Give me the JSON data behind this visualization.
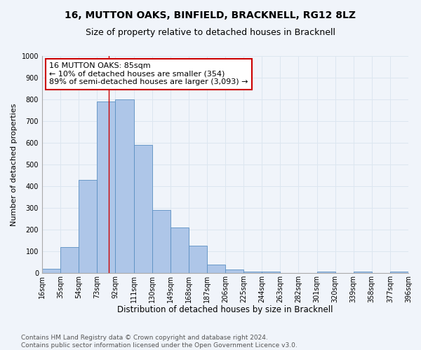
{
  "title": "16, MUTTON OAKS, BINFIELD, BRACKNELL, RG12 8LZ",
  "subtitle": "Size of property relative to detached houses in Bracknell",
  "xlabel": "Distribution of detached houses by size in Bracknell",
  "ylabel": "Number of detached properties",
  "bar_labels": [
    "16sqm",
    "35sqm",
    "54sqm",
    "73sqm",
    "92sqm",
    "111sqm",
    "130sqm",
    "149sqm",
    "168sqm",
    "187sqm",
    "206sqm",
    "225sqm",
    "244sqm",
    "263sqm",
    "282sqm",
    "301sqm",
    "320sqm",
    "339sqm",
    "358sqm",
    "377sqm",
    "396sqm"
  ],
  "bar_values": [
    20,
    120,
    430,
    790,
    800,
    590,
    290,
    210,
    125,
    38,
    15,
    8,
    8,
    0,
    0,
    5,
    0,
    5,
    0,
    8
  ],
  "bar_color": "#aec6e8",
  "bar_edge_color": "#5a8fc2",
  "grid_color": "#dce6f0",
  "background_color": "#f0f4fa",
  "vline_color": "#cc0000",
  "annotation_text": "16 MUTTON OAKS: 85sqm\n← 10% of detached houses are smaller (354)\n89% of semi-detached houses are larger (3,093) →",
  "annotation_box_color": "#ffffff",
  "annotation_box_edge": "#cc0000",
  "ylim": [
    0,
    1000
  ],
  "yticks": [
    0,
    100,
    200,
    300,
    400,
    500,
    600,
    700,
    800,
    900,
    1000
  ],
  "footnote": "Contains HM Land Registry data © Crown copyright and database right 2024.\nContains public sector information licensed under the Open Government Licence v3.0.",
  "title_fontsize": 10,
  "subtitle_fontsize": 9,
  "xlabel_fontsize": 8.5,
  "ylabel_fontsize": 8,
  "tick_fontsize": 7,
  "annotation_fontsize": 8,
  "footnote_fontsize": 6.5
}
